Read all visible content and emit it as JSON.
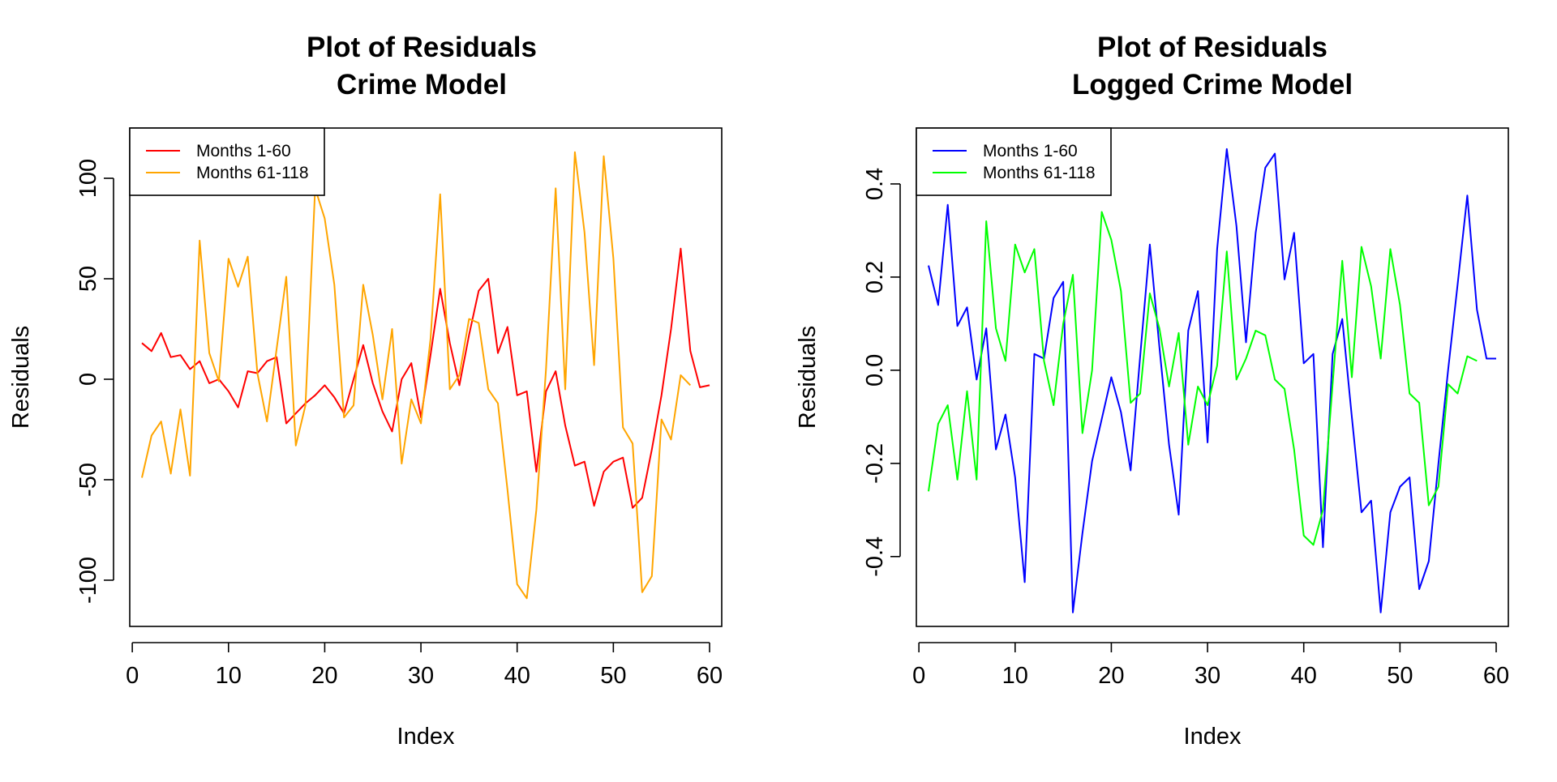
{
  "chart_data": [
    {
      "type": "line",
      "title": [
        "Plot of Residuals",
        "Crime Model"
      ],
      "xlabel": "Index",
      "ylabel": "Residuals",
      "xlim": [
        1,
        60
      ],
      "ylim": [
        -123,
        125
      ],
      "xticks": [
        0,
        10,
        20,
        30,
        40,
        50,
        60
      ],
      "xtick_labels": [
        "0",
        "10",
        "20",
        "30",
        "40",
        "50",
        "60"
      ],
      "yticks": [
        -100,
        -50,
        0,
        50,
        100
      ],
      "ytick_labels": [
        "-100",
        "-50",
        "0",
        "50",
        "100"
      ],
      "legend_position": "top-left",
      "series": [
        {
          "name": "Months 1-60",
          "color": "#ff0000",
          "x": [
            1,
            2,
            3,
            4,
            5,
            6,
            7,
            8,
            9,
            10,
            11,
            12,
            13,
            14,
            15,
            16,
            17,
            18,
            19,
            20,
            21,
            22,
            23,
            24,
            25,
            26,
            27,
            28,
            29,
            30,
            31,
            32,
            33,
            34,
            35,
            36,
            37,
            38,
            39,
            40,
            41,
            42,
            43,
            44,
            45,
            46,
            47,
            48,
            49,
            50,
            51,
            52,
            53,
            54,
            55,
            56,
            57,
            58,
            59,
            60
          ],
          "y": [
            18,
            14,
            23,
            11,
            12,
            5,
            9,
            -2,
            0,
            -6,
            -14,
            4,
            3,
            9,
            11,
            -22,
            -17,
            -12,
            -8,
            -3,
            -9,
            -17,
            0,
            17,
            -2,
            -16,
            -26,
            0,
            8,
            -19,
            12,
            45,
            18,
            -3,
            22,
            44,
            50,
            13,
            26,
            -8,
            -6,
            -46,
            -6,
            4,
            -23,
            -43,
            -41,
            -63,
            -46,
            -41,
            -39,
            -64,
            -59,
            -35,
            -8,
            25,
            65,
            14,
            -4,
            -3
          ]
        },
        {
          "name": "Months 61-118",
          "color": "#ffa500",
          "x": [
            1,
            2,
            3,
            4,
            5,
            6,
            7,
            8,
            9,
            10,
            11,
            12,
            13,
            14,
            15,
            16,
            17,
            18,
            19,
            20,
            21,
            22,
            23,
            24,
            25,
            26,
            27,
            28,
            29,
            30,
            31,
            32,
            33,
            34,
            35,
            36,
            37,
            38,
            39,
            40,
            41,
            42,
            43,
            44,
            45,
            46,
            47,
            48,
            49,
            50,
            51,
            52,
            53,
            54,
            55,
            56,
            57,
            58
          ],
          "y": [
            -49,
            -28,
            -21,
            -47,
            -15,
            -48,
            69,
            13,
            -1,
            60,
            46,
            61,
            3,
            -21,
            15,
            51,
            -33,
            -13,
            95,
            80,
            47,
            -19,
            -13,
            47,
            22,
            -10,
            25,
            -42,
            -10,
            -22,
            20,
            92,
            -5,
            2,
            30,
            28,
            -5,
            -12,
            -55,
            -102,
            -109,
            -65,
            5,
            95,
            -5,
            113,
            73,
            7,
            111,
            60,
            -24,
            -32,
            -106,
            -98,
            -20,
            -30,
            2,
            -3
          ]
        }
      ]
    },
    {
      "type": "line",
      "title": [
        "Plot of Residuals",
        "Logged Crime Model"
      ],
      "xlabel": "Index",
      "ylabel": "Residuals",
      "xlim": [
        1,
        60
      ],
      "ylim": [
        -0.55,
        0.52
      ],
      "xticks": [
        0,
        10,
        20,
        30,
        40,
        50,
        60
      ],
      "xtick_labels": [
        "0",
        "10",
        "20",
        "30",
        "40",
        "50",
        "60"
      ],
      "yticks": [
        -0.4,
        -0.2,
        0.0,
        0.2,
        0.4
      ],
      "ytick_labels": [
        "-0.4",
        "-0.2",
        "0.0",
        "0.2",
        "0.4"
      ],
      "legend_position": "top-left",
      "series": [
        {
          "name": "Months 1-60",
          "color": "#0000ff",
          "x": [
            1,
            2,
            3,
            4,
            5,
            6,
            7,
            8,
            9,
            10,
            11,
            12,
            13,
            14,
            15,
            16,
            17,
            18,
            19,
            20,
            21,
            22,
            23,
            24,
            25,
            26,
            27,
            28,
            29,
            30,
            31,
            32,
            33,
            34,
            35,
            36,
            37,
            38,
            39,
            40,
            41,
            42,
            43,
            44,
            45,
            46,
            47,
            48,
            49,
            50,
            51,
            52,
            53,
            54,
            55,
            56,
            57,
            58,
            59,
            60
          ],
          "y": [
            0.225,
            0.14,
            0.355,
            0.095,
            0.135,
            -0.02,
            0.09,
            -0.17,
            -0.095,
            -0.23,
            -0.455,
            0.035,
            0.025,
            0.155,
            0.19,
            -0.52,
            -0.35,
            -0.195,
            -0.105,
            -0.015,
            -0.09,
            -0.215,
            0.03,
            0.27,
            0.05,
            -0.16,
            -0.31,
            0.085,
            0.17,
            -0.155,
            0.26,
            0.475,
            0.31,
            0.06,
            0.295,
            0.435,
            0.465,
            0.195,
            0.295,
            0.015,
            0.035,
            -0.38,
            0.035,
            0.11,
            -0.1,
            -0.305,
            -0.28,
            -0.52,
            -0.305,
            -0.25,
            -0.23,
            -0.47,
            -0.41,
            -0.2,
            0.0,
            0.185,
            0.375,
            0.13,
            0.025,
            0.025
          ]
        },
        {
          "name": "Months 61-118",
          "color": "#00ff00",
          "x": [
            1,
            2,
            3,
            4,
            5,
            6,
            7,
            8,
            9,
            10,
            11,
            12,
            13,
            14,
            15,
            16,
            17,
            18,
            19,
            20,
            21,
            22,
            23,
            24,
            25,
            26,
            27,
            28,
            29,
            30,
            31,
            32,
            33,
            34,
            35,
            36,
            37,
            38,
            39,
            40,
            41,
            42,
            43,
            44,
            45,
            46,
            47,
            48,
            49,
            50,
            51,
            52,
            53,
            54,
            55,
            56,
            57,
            58
          ],
          "y": [
            -0.26,
            -0.115,
            -0.075,
            -0.235,
            -0.045,
            -0.235,
            0.32,
            0.09,
            0.02,
            0.27,
            0.21,
            0.26,
            0.02,
            -0.075,
            0.1,
            0.205,
            -0.135,
            0.0,
            0.34,
            0.28,
            0.17,
            -0.07,
            -0.05,
            0.165,
            0.09,
            -0.035,
            0.08,
            -0.16,
            -0.035,
            -0.075,
            0.01,
            0.255,
            -0.02,
            0.025,
            0.085,
            0.075,
            -0.02,
            -0.04,
            -0.17,
            -0.355,
            -0.375,
            -0.3,
            -0.03,
            0.235,
            -0.015,
            0.265,
            0.18,
            0.025,
            0.26,
            0.14,
            -0.05,
            -0.07,
            -0.29,
            -0.25,
            -0.03,
            -0.05,
            0.03,
            0.02
          ]
        }
      ]
    }
  ]
}
